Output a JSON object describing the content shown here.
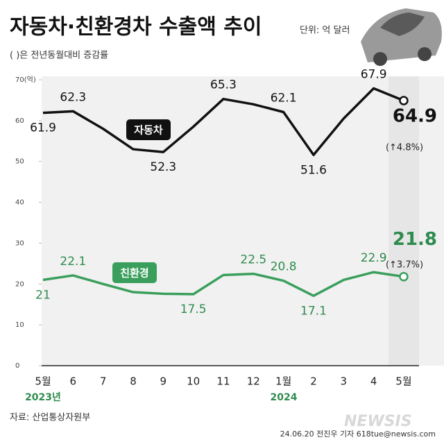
{
  "chart_data": {
    "type": "line",
    "title": "자동차·친환경차 수출액 추이",
    "unit": "단위: 억 달러",
    "subtitle": "( )은 전년동월대비 증감률",
    "categories": [
      "5월",
      "6",
      "7",
      "8",
      "9",
      "10",
      "11",
      "12",
      "1월",
      "2",
      "3",
      "4",
      "5월"
    ],
    "year_labels": [
      "2023년",
      "2024"
    ],
    "series": [
      {
        "name": "자동차",
        "color": "#111111",
        "values": [
          61.9,
          62.3,
          58,
          53,
          52.3,
          58.5,
          65.3,
          64,
          62.1,
          51.6,
          60.5,
          67.9,
          64.9
        ],
        "value_labels": [
          "61.9",
          "62.3",
          null,
          null,
          "52.3",
          null,
          "65.3",
          null,
          "62.1",
          "51.6",
          null,
          "67.9",
          "64.9"
        ]
      },
      {
        "name": "친환경",
        "color": "#3a9f5c",
        "values": [
          21,
          22.1,
          20,
          18,
          17.6,
          17.5,
          22.2,
          22.5,
          20.8,
          17.1,
          21,
          22.9,
          21.8
        ],
        "value_labels": [
          "21",
          "22.1",
          null,
          null,
          null,
          "17.5",
          null,
          "22.5",
          "20.8",
          "17.1",
          null,
          "22.9",
          "21.8"
        ]
      }
    ],
    "annotations": [
      "(↑4.8%)",
      "(↑3.7%)"
    ],
    "ylim": [
      0,
      70
    ],
    "yticks": [
      0,
      10,
      20,
      30,
      40,
      50,
      60,
      {
        "value": 70,
        "label": "70(억)"
      }
    ],
    "source": "자료: 산업통상자원부",
    "credit": "24.06.20 전진우 기자 618tue@newsis.com",
    "logo": "NEWSIS"
  }
}
